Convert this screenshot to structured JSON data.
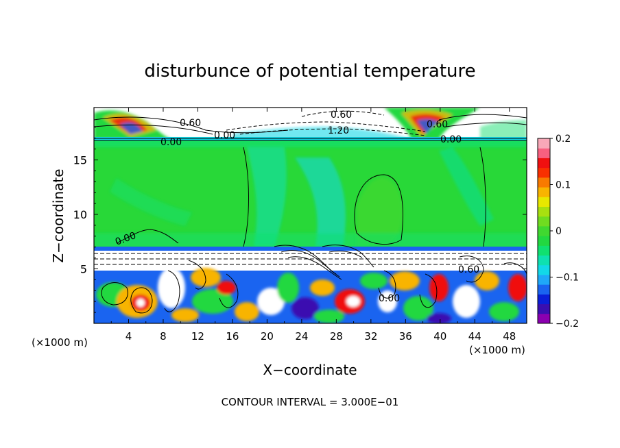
{
  "chart_data": {
    "type": "heatmap",
    "title": "disturbunce of potential temperature",
    "xlabel": "X−coordinate",
    "ylabel": "Z−coordinate",
    "xlim": [
      0,
      50
    ],
    "ylim": [
      0,
      19.8
    ],
    "x_ticks": [
      "4",
      "8",
      "12",
      "16",
      "20",
      "24",
      "28",
      "32",
      "36",
      "40",
      "44",
      "48"
    ],
    "y_ticks": [
      "5",
      "10",
      "15"
    ],
    "x_unit_label": "(×1000 m)",
    "x_unit_label_right": "(×1000 m)",
    "colorbar": {
      "ticks": [
        "0.2",
        "0.1",
        "0",
        "−0.1",
        "−0.2"
      ],
      "range": [
        -0.2,
        0.2
      ],
      "colors": [
        "#8b00b0",
        "#3a0fb0",
        "#0a1fd8",
        "#1a64f0",
        "#1fa8f8",
        "#12d8e8",
        "#0ee0b0",
        "#10e070",
        "#22d840",
        "#40d830",
        "#70dc20",
        "#a8e010",
        "#e8e800",
        "#f8b400",
        "#f87a00",
        "#f83000",
        "#f01010",
        "#f86080",
        "#f8a8b8"
      ]
    },
    "contour_labels": [
      "0.60",
      "0.60",
      "0.00",
      "0.00",
      "0.60",
      "1.20",
      "0.00",
      "0.60",
      "0.00",
      "0.00"
    ],
    "annotation": "CONTOUR INTERVAL = 3.000E−01"
  }
}
